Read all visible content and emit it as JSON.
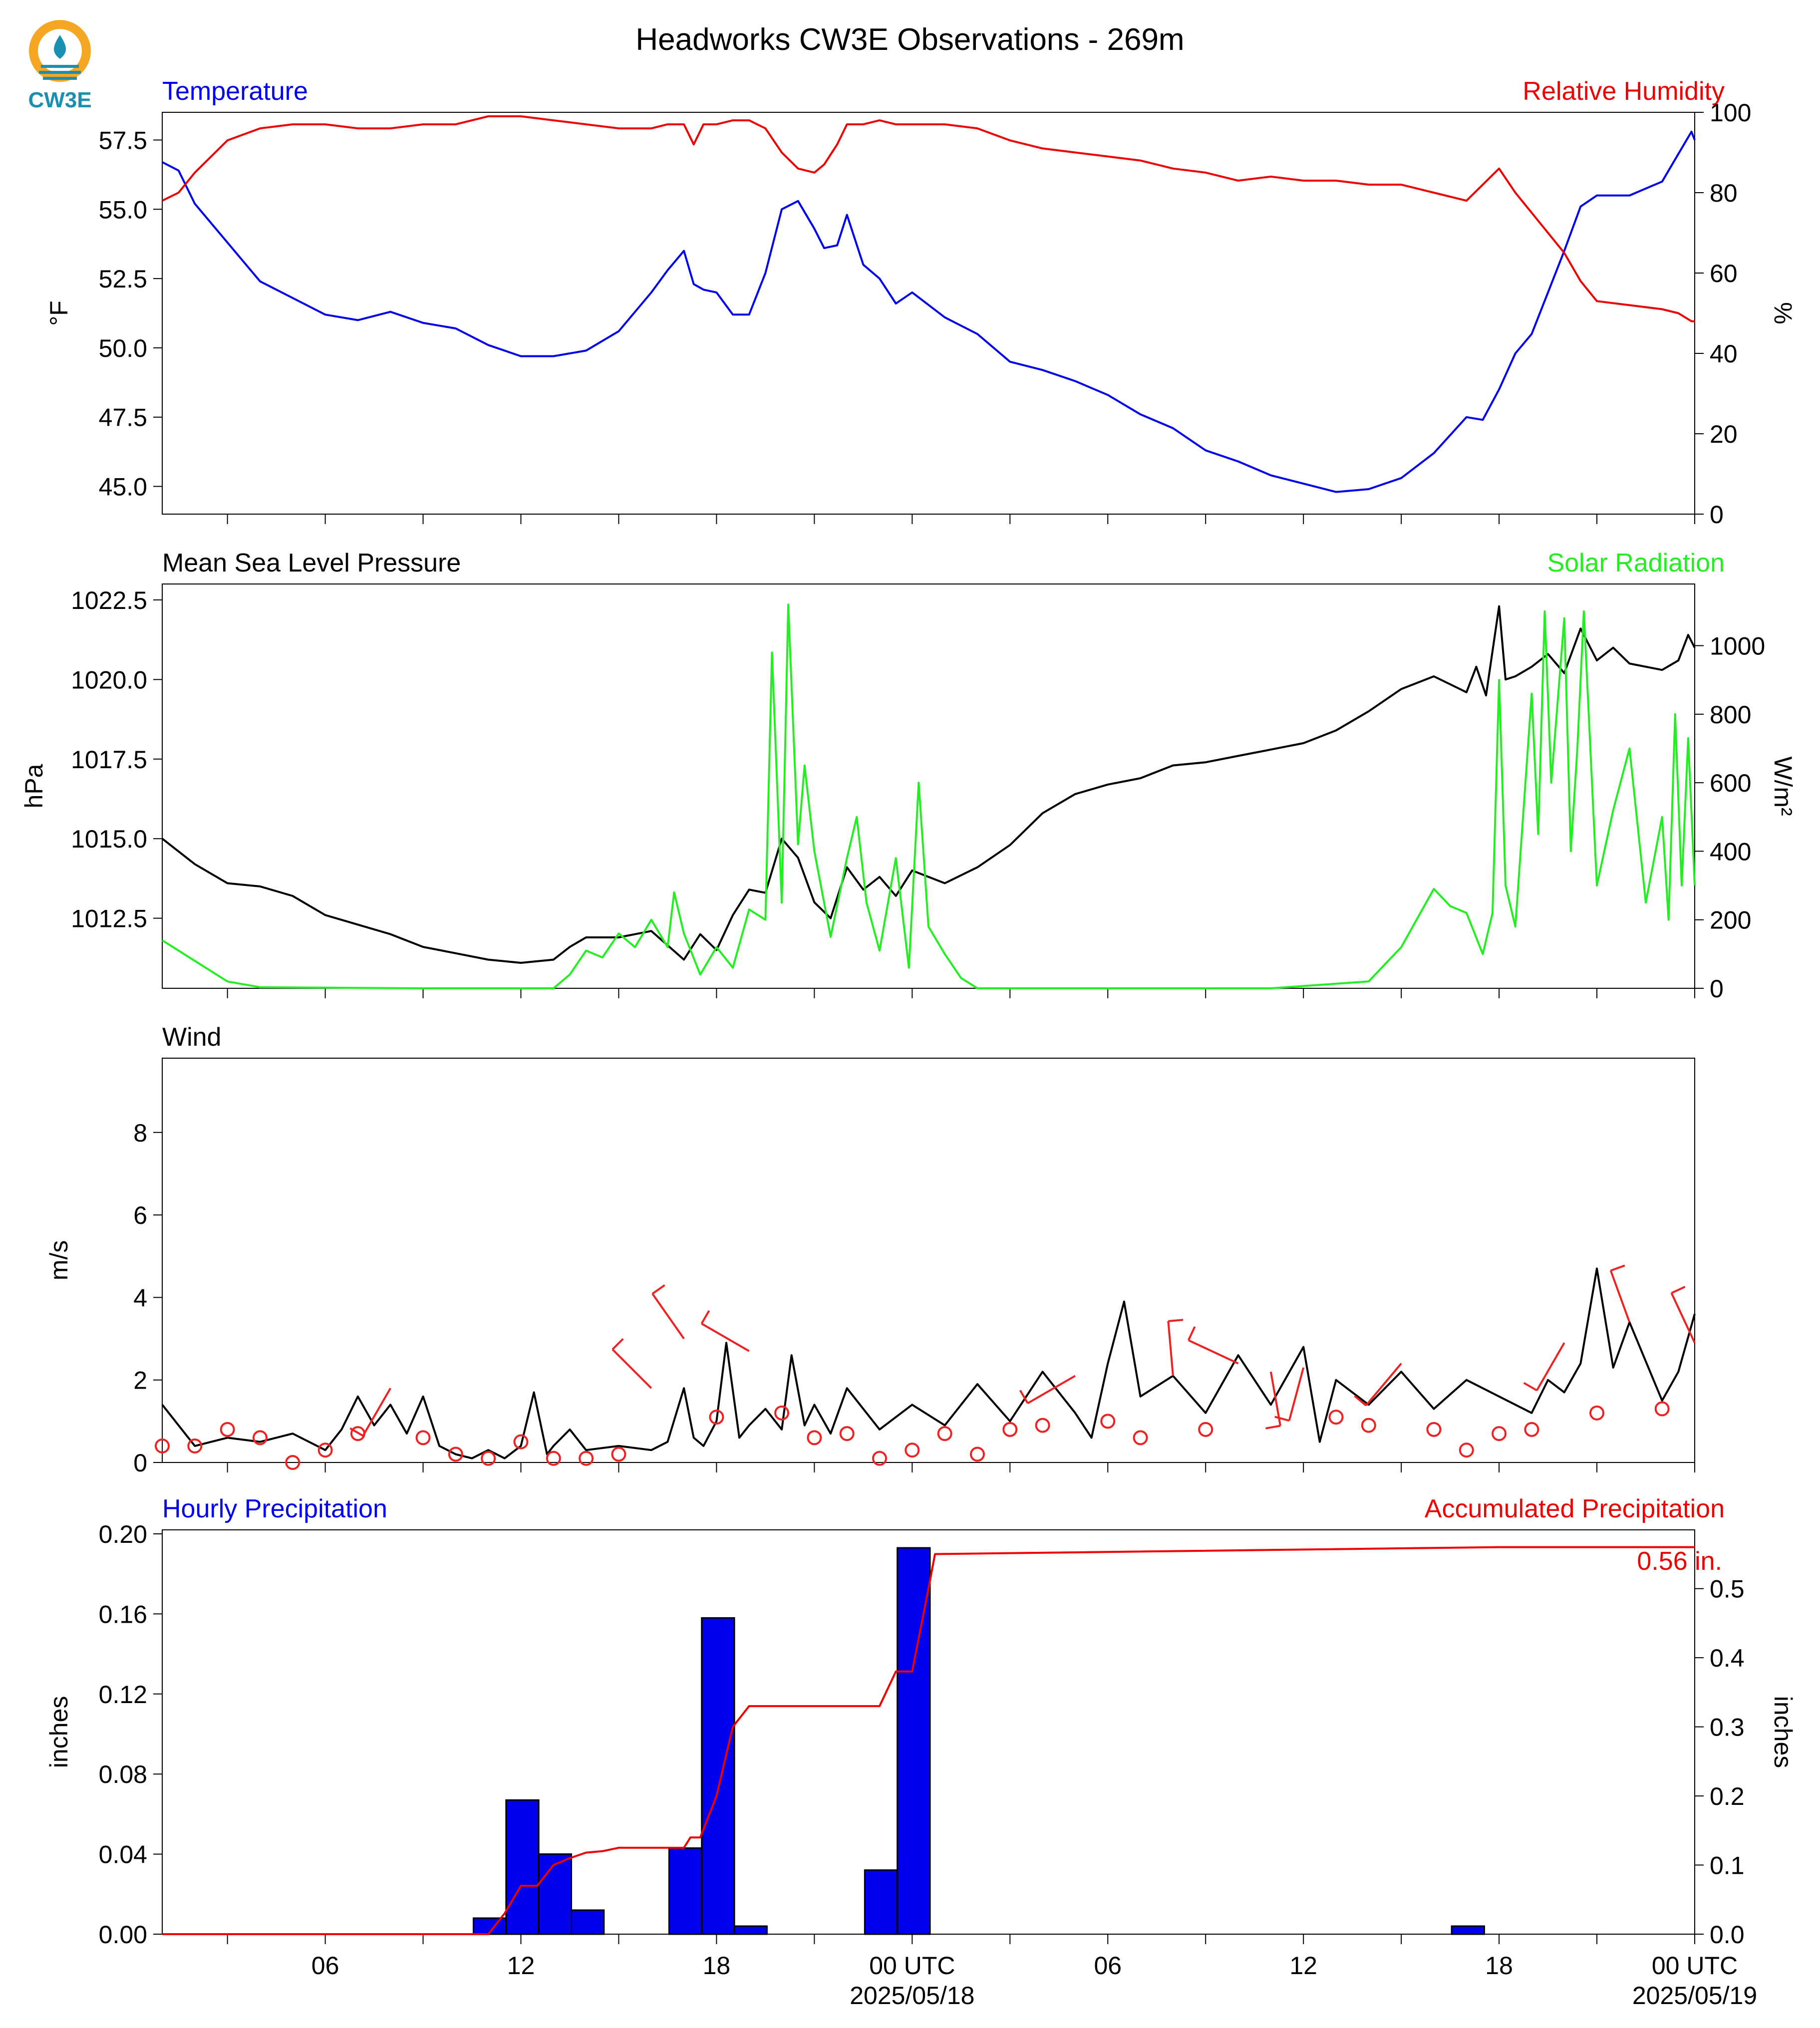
{
  "title": "Headworks CW3E Observations - 269m",
  "logo": {
    "text": "CW3E",
    "colors": [
      "#f5a623",
      "#1a8fb0"
    ]
  },
  "x_axis": {
    "tick_labels": [
      "06",
      "12",
      "18",
      "00 UTC",
      "06",
      "12",
      "18",
      "00 UTC"
    ],
    "tick_hours": [
      6,
      12,
      18,
      24,
      30,
      36,
      42,
      48
    ],
    "date_labels": [
      "2025/05/18",
      "2025/05/19"
    ],
    "date_hours": [
      24,
      48
    ],
    "range_hours": [
      1,
      48
    ]
  },
  "chart_data": [
    {
      "type": "line",
      "id": "temp_rh",
      "left_title": "Temperature",
      "right_title": "Relative Humidity",
      "ylabel": "°F",
      "y2label": "%",
      "ylim": [
        44.0,
        58.5
      ],
      "y2lim": [
        0,
        100
      ],
      "yticks": [
        "45.0",
        "47.5",
        "50.0",
        "52.5",
        "55.0",
        "57.5"
      ],
      "y2ticks": [
        "0",
        "20",
        "40",
        "60",
        "80",
        "100"
      ],
      "series": [
        {
          "name": "Temperature",
          "axis": "left",
          "color": "#0000ee",
          "x": [
            1,
            1.5,
            2,
            3,
            4,
            5,
            6,
            7,
            8,
            9,
            10,
            11,
            12,
            13,
            14,
            15,
            16,
            16.5,
            17,
            17.3,
            17.6,
            18,
            18.5,
            19,
            19.5,
            20,
            20.5,
            21,
            21.3,
            21.7,
            22,
            22.5,
            23,
            23.5,
            24,
            25,
            26,
            27,
            28,
            29,
            30,
            31,
            32,
            33,
            34,
            35,
            36,
            37,
            38,
            39,
            40,
            41,
            41.5,
            42,
            42.5,
            43,
            43.5,
            44,
            44.5,
            45,
            46,
            47,
            47.5,
            47.9,
            48
          ],
          "values": [
            56.7,
            56.4,
            55.2,
            53.8,
            52.4,
            51.8,
            51.2,
            51.0,
            51.3,
            50.9,
            50.7,
            50.1,
            49.7,
            49.7,
            49.9,
            50.6,
            52.0,
            52.8,
            53.5,
            52.3,
            52.1,
            52.0,
            51.2,
            51.2,
            52.7,
            55.0,
            55.3,
            54.3,
            53.6,
            53.7,
            54.8,
            53.0,
            52.5,
            51.6,
            52.0,
            51.1,
            50.5,
            49.5,
            49.2,
            48.8,
            48.3,
            47.6,
            47.1,
            46.3,
            45.9,
            45.4,
            45.1,
            44.8,
            44.9,
            45.3,
            46.2,
            47.5,
            47.4,
            48.5,
            49.8,
            50.5,
            52.0,
            53.5,
            55.1,
            55.5,
            55.5,
            56.0,
            57.0,
            57.8,
            57.5
          ]
        },
        {
          "name": "Relative Humidity",
          "axis": "right",
          "color": "#ee0000",
          "x": [
            1,
            1.5,
            2,
            3,
            4,
            5,
            6,
            7,
            8,
            9,
            10,
            11,
            12,
            13,
            14,
            15,
            16,
            16.5,
            17,
            17.3,
            17.6,
            18,
            18.5,
            19,
            19.5,
            20,
            20.5,
            21,
            21.3,
            21.7,
            22,
            22.5,
            23,
            23.5,
            24,
            25,
            26,
            27,
            28,
            29,
            30,
            31,
            32,
            33,
            34,
            35,
            36,
            37,
            38,
            39,
            40,
            41,
            41.5,
            42,
            42.5,
            43,
            43.5,
            44,
            44.5,
            45,
            46,
            47,
            47.5,
            47.9,
            48
          ],
          "values": [
            78,
            80,
            85,
            93,
            96,
            97,
            97,
            96,
            96,
            97,
            97,
            99,
            99,
            98,
            97,
            96,
            96,
            97,
            97,
            92,
            97,
            97,
            98,
            98,
            96,
            90,
            86,
            85,
            87,
            92,
            97,
            97,
            98,
            97,
            97,
            97,
            96,
            93,
            91,
            90,
            89,
            88,
            86,
            85,
            83,
            84,
            83,
            83,
            82,
            82,
            80,
            78,
            82,
            86,
            80,
            75,
            70,
            65,
            58,
            53,
            52,
            51,
            50,
            48,
            48
          ]
        }
      ]
    },
    {
      "type": "line",
      "id": "pressure_solar",
      "left_title": "Mean Sea Level Pressure",
      "right_title": "Solar Radiation",
      "ylabel": "hPa",
      "y2label": "W/m²",
      "ylim": [
        1010.3,
        1023.0
      ],
      "y2lim": [
        0,
        1180
      ],
      "yticks": [
        "1012.5",
        "1015.0",
        "1017.5",
        "1020.0",
        "1022.5"
      ],
      "y2ticks": [
        "0",
        "200",
        "400",
        "600",
        "800",
        "1000"
      ],
      "series": [
        {
          "name": "Mean Sea Level Pressure",
          "axis": "left",
          "color": "#000000",
          "x": [
            1,
            2,
            3,
            4,
            5,
            6,
            7,
            8,
            9,
            10,
            11,
            12,
            13,
            13.5,
            14,
            15,
            16,
            17,
            17.5,
            18,
            18.5,
            19,
            19.5,
            20,
            20.5,
            21,
            21.5,
            22,
            22.5,
            23,
            23.5,
            24,
            25,
            26,
            27,
            28,
            29,
            30,
            31,
            32,
            33,
            34,
            35,
            36,
            37,
            38,
            39,
            40,
            41,
            41.3,
            41.6,
            42,
            42.2,
            42.5,
            43,
            43.5,
            44,
            44.5,
            45,
            45.5,
            46,
            47,
            47.5,
            47.8,
            48
          ],
          "values": [
            1015.0,
            1014.2,
            1013.6,
            1013.5,
            1013.2,
            1012.6,
            1012.3,
            1012.0,
            1011.6,
            1011.4,
            1011.2,
            1011.1,
            1011.2,
            1011.6,
            1011.9,
            1011.9,
            1012.1,
            1011.2,
            1012.0,
            1011.5,
            1012.6,
            1013.4,
            1013.3,
            1015.0,
            1014.4,
            1013.0,
            1012.5,
            1014.1,
            1013.4,
            1013.8,
            1013.2,
            1014.0,
            1013.6,
            1014.1,
            1014.8,
            1015.8,
            1016.4,
            1016.7,
            1016.9,
            1017.3,
            1017.4,
            1017.6,
            1017.8,
            1018.0,
            1018.4,
            1019.0,
            1019.7,
            1020.1,
            1019.6,
            1020.4,
            1019.5,
            1022.3,
            1020.0,
            1020.1,
            1020.4,
            1020.8,
            1020.2,
            1021.6,
            1020.6,
            1021.0,
            1020.5,
            1020.3,
            1020.6,
            1021.4,
            1021.0
          ]
        },
        {
          "name": "Solar Radiation",
          "axis": "right",
          "color": "#22ee22",
          "x": [
            1,
            1.5,
            2,
            3,
            4,
            9,
            13,
            13.5,
            14,
            14.5,
            15,
            15.5,
            16,
            16.5,
            16.7,
            17,
            17.5,
            18,
            18.5,
            19,
            19.5,
            19.7,
            20,
            20.2,
            20.5,
            20.7,
            21,
            21.5,
            22,
            22.3,
            22.6,
            23,
            23.5,
            23.9,
            24.2,
            24.5,
            25,
            25.5,
            26,
            35,
            38,
            39,
            40,
            40.5,
            41,
            41.5,
            41.8,
            42,
            42.2,
            42.5,
            43,
            43.2,
            43.4,
            43.6,
            44,
            44.2,
            44.4,
            44.6,
            45,
            45.5,
            46,
            46.5,
            47,
            47.2,
            47.4,
            47.6,
            47.8,
            48
          ],
          "values": [
            140,
            110,
            80,
            20,
            3,
            0,
            0,
            40,
            110,
            90,
            160,
            120,
            200,
            120,
            280,
            160,
            40,
            120,
            60,
            230,
            200,
            980,
            250,
            1120,
            420,
            650,
            400,
            150,
            380,
            500,
            250,
            110,
            380,
            60,
            600,
            180,
            100,
            30,
            0,
            0,
            20,
            120,
            290,
            240,
            220,
            100,
            220,
            900,
            300,
            180,
            860,
            450,
            1100,
            600,
            1080,
            400,
            700,
            1100,
            300,
            520,
            700,
            250,
            500,
            200,
            800,
            300,
            730,
            300
          ]
        }
      ]
    },
    {
      "type": "line",
      "id": "wind",
      "left_title": "Wind",
      "ylabel": "m/s",
      "ylim": [
        0,
        9.8
      ],
      "yticks": [
        "0",
        "2",
        "4",
        "6",
        "8"
      ],
      "series": [
        {
          "name": "Wind",
          "axis": "left",
          "color": "#000000",
          "x": [
            1,
            2,
            3,
            4,
            5,
            6,
            6.5,
            7,
            7.5,
            8,
            8.5,
            9,
            9.5,
            10,
            10.5,
            11,
            11.5,
            12,
            12.4,
            12.8,
            13,
            13.5,
            14,
            15,
            16,
            16.5,
            17,
            17.3,
            17.6,
            18,
            18.3,
            18.7,
            19,
            19.5,
            20,
            20.3,
            20.7,
            21,
            21.5,
            22,
            23,
            24,
            25,
            26,
            27,
            28,
            29,
            29.5,
            30,
            30.5,
            31,
            32,
            33,
            34,
            35,
            36,
            36.5,
            37,
            38,
            39,
            40,
            41,
            42,
            43,
            43.5,
            44,
            44.5,
            45,
            45.5,
            46,
            47,
            47.5,
            48
          ],
          "values": [
            1.4,
            0.4,
            0.6,
            0.5,
            0.7,
            0.3,
            0.8,
            1.6,
            0.9,
            1.4,
            0.7,
            1.6,
            0.4,
            0.2,
            0.1,
            0.3,
            0.1,
            0.4,
            1.7,
            0.2,
            0.4,
            0.8,
            0.3,
            0.4,
            0.3,
            0.5,
            1.8,
            0.6,
            0.4,
            1.0,
            2.9,
            0.6,
            0.9,
            1.3,
            0.8,
            2.6,
            0.9,
            1.4,
            0.7,
            1.8,
            0.8,
            1.4,
            0.9,
            1.9,
            1.0,
            2.2,
            1.2,
            0.6,
            2.4,
            3.9,
            1.6,
            2.1,
            1.2,
            2.6,
            1.4,
            2.8,
            0.5,
            2.0,
            1.4,
            2.2,
            1.3,
            2.0,
            1.6,
            1.2,
            2.0,
            1.7,
            2.4,
            4.7,
            2.3,
            3.4,
            1.5,
            2.2,
            3.6
          ]
        }
      ],
      "barbs": {
        "x": [
          1,
          2,
          3,
          4,
          5,
          6,
          7,
          8,
          9,
          10,
          11,
          12,
          13,
          14,
          15,
          16,
          17,
          18,
          19,
          20,
          21,
          22,
          23,
          24,
          25,
          26,
          27,
          28,
          29,
          30,
          31,
          32,
          33,
          34,
          35,
          36,
          37,
          38,
          39,
          40,
          41,
          42,
          43,
          44,
          45,
          46,
          47,
          48
        ],
        "speed": [
          0.4,
          0.4,
          0.8,
          0.6,
          0.0,
          0.3,
          0.7,
          1.8,
          0.6,
          0.2,
          0.1,
          0.5,
          0.1,
          0.1,
          0.2,
          1.8,
          3.0,
          1.1,
          2.7,
          1.2,
          0.6,
          0.7,
          0.1,
          0.3,
          0.7,
          0.2,
          0.8,
          0.9,
          2.1,
          1.0,
          0.6,
          2.1,
          0.8,
          2.4,
          2.2,
          2.3,
          1.1,
          0.9,
          2.4,
          0.8,
          0.3,
          0.7,
          0.8,
          2.9,
          1.2,
          3.4,
          1.3,
          2.9
        ],
        "dir": [
          0,
          0,
          0,
          0,
          0,
          0,
          0,
          210,
          0,
          0,
          0,
          0,
          0,
          0,
          0,
          315,
          325,
          0,
          300,
          0,
          0,
          0,
          0,
          0,
          0,
          0,
          0,
          0,
          240,
          0,
          0,
          355,
          0,
          295,
          170,
          195,
          0,
          0,
          220,
          0,
          0,
          0,
          0,
          210,
          0,
          340,
          0,
          335
        ]
      }
    },
    {
      "type": "bar",
      "id": "precip",
      "left_title": "Hourly Precipitation",
      "right_title": "Accumulated Precipitation",
      "ylabel": "inches",
      "y2label": "inches",
      "ylim": [
        0,
        0.202
      ],
      "y2lim": [
        0,
        0.585
      ],
      "yticks": [
        "0.00",
        "0.04",
        "0.08",
        "0.12",
        "0.16",
        "0.20"
      ],
      "y2ticks": [
        "0.0",
        "0.1",
        "0.2",
        "0.3",
        "0.4",
        "0.5"
      ],
      "total_label": "0.56 in.",
      "series": [
        {
          "name": "Hourly Precipitation",
          "axis": "left",
          "color": "#0000ee",
          "x": [
            11,
            12,
            13,
            14,
            17,
            18,
            19,
            23,
            24,
            41
          ],
          "values": [
            0.008,
            0.067,
            0.04,
            0.012,
            0.043,
            0.158,
            0.004,
            0.032,
            0.193,
            0.004
          ]
        },
        {
          "name": "Accumulated Precipitation",
          "axis": "right",
          "color": "#ee0000",
          "x": [
            1,
            11.0,
            11.5,
            12.0,
            12.5,
            13.0,
            13.5,
            14.0,
            14.5,
            15.0,
            17.0,
            17.2,
            17.5,
            18.0,
            18.5,
            19.0,
            20.0,
            23.0,
            23.5,
            24.0,
            24.5,
            24.7,
            42.0,
            48
          ],
          "values": [
            0.0,
            0.0,
            0.03,
            0.07,
            0.07,
            0.1,
            0.11,
            0.118,
            0.12,
            0.125,
            0.125,
            0.14,
            0.14,
            0.2,
            0.3,
            0.33,
            0.33,
            0.33,
            0.38,
            0.38,
            0.5,
            0.55,
            0.56,
            0.56
          ]
        }
      ]
    }
  ]
}
